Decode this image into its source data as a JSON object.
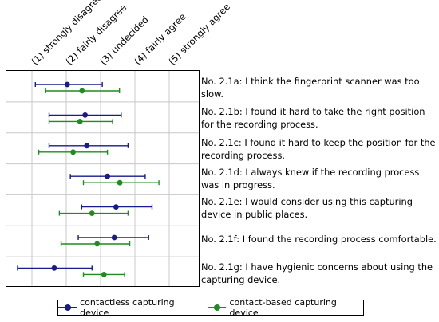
{
  "chart_data": {
    "type": "errorbar",
    "scale": [
      "(1) strongly disagree",
      "(2) fairly disagree",
      "(3) undecided",
      "(4) fairly agree",
      "(5) strongly agree"
    ],
    "xlim": [
      1,
      5
    ],
    "grid": true,
    "legend_placement": "bottom",
    "colors": {
      "contactless": "#1a1a8c",
      "contact": "#1f8c1f"
    },
    "series": [
      {
        "name": "contactless capturing device"
      },
      {
        "name": "contact-based capturing device"
      }
    ],
    "items": [
      {
        "label": "No. 2.1a: I think the fingerprint scanner was too slow.",
        "contactless": {
          "mean": 2.03,
          "low": 1.1,
          "high": 3.05
        },
        "contact": {
          "mean": 2.46,
          "low": 1.4,
          "high": 3.55
        }
      },
      {
        "label": "No. 2.1b: I found it hard to take the right position for the recording process.",
        "contactless": {
          "mean": 2.55,
          "low": 1.5,
          "high": 3.6
        },
        "contact": {
          "mean": 2.4,
          "low": 1.5,
          "high": 3.35
        }
      },
      {
        "label": "No. 2.1c: I found it hard to keep the position for the recording process.",
        "contactless": {
          "mean": 2.6,
          "low": 1.5,
          "high": 3.8
        },
        "contact": {
          "mean": 2.2,
          "low": 1.2,
          "high": 3.2
        }
      },
      {
        "label": "No. 2.1d: I always knew if the recording process was in progress.",
        "contactless": {
          "mean": 3.2,
          "low": 2.12,
          "high": 4.3
        },
        "contact": {
          "mean": 3.56,
          "low": 2.5,
          "high": 4.7
        }
      },
      {
        "label": "No. 2.1e: I would consider using this capturing device in public places.",
        "contactless": {
          "mean": 3.45,
          "low": 2.45,
          "high": 4.5
        },
        "contact": {
          "mean": 2.75,
          "low": 1.8,
          "high": 3.8
        }
      },
      {
        "label": "No. 2.1f: I found the recording process comfortable.",
        "contactless": {
          "mean": 3.4,
          "low": 2.35,
          "high": 4.4
        },
        "contact": {
          "mean": 2.9,
          "low": 1.85,
          "high": 3.85
        }
      },
      {
        "label": "No. 2.1g: I have hygienic concerns about using the capturing device.",
        "contactless": {
          "mean": 1.65,
          "low": 0.58,
          "high": 2.75
        },
        "contact": {
          "mean": 3.1,
          "low": 2.5,
          "high": 3.7
        }
      }
    ]
  }
}
